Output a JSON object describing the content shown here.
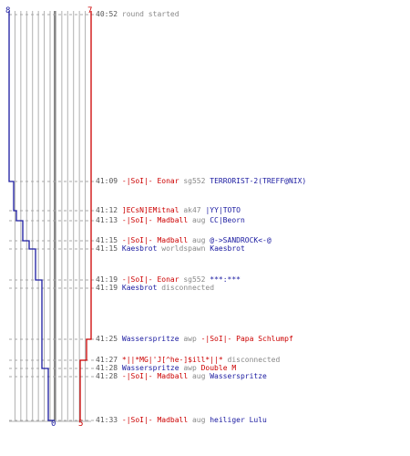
{
  "colors": {
    "blue": "#1a1aa0",
    "red": "#cc0000",
    "grid": "#b0b0b0",
    "dash": "#a8a8a8",
    "mid": "#606060"
  },
  "scores": {
    "blue_start": "8",
    "red_start": "7",
    "blue_end": "0",
    "red_end": "5"
  },
  "events": [
    {
      "time": "40:52",
      "parts": [
        {
          "c": "gray",
          "t": "round started"
        }
      ]
    },
    {
      "time": "41:09",
      "parts": [
        {
          "c": "red",
          "t": "-|SoI|- Eonar"
        },
        {
          "c": "gray",
          "t": "sg552"
        },
        {
          "c": "blue",
          "t": "TERRORIST-2(TREFF@NIX)"
        }
      ]
    },
    {
      "time": "41:12",
      "parts": [
        {
          "c": "red",
          "t": "]ECsN]EMitnal"
        },
        {
          "c": "gray",
          "t": "ak47"
        },
        {
          "c": "blue",
          "t": "|YY|TOTO"
        }
      ]
    },
    {
      "time": "41:13",
      "parts": [
        {
          "c": "red",
          "t": "-|SoI|- Madball"
        },
        {
          "c": "gray",
          "t": "aug"
        },
        {
          "c": "blue",
          "t": "CC|Beorn"
        }
      ]
    },
    {
      "time": "41:15",
      "parts": [
        {
          "c": "red",
          "t": "-|SoI|- Madball"
        },
        {
          "c": "gray",
          "t": "aug"
        },
        {
          "c": "blue",
          "t": "@->SANDROCK<-@"
        }
      ]
    },
    {
      "time": "41:15",
      "parts": [
        {
          "c": "blue",
          "t": "Kaesbrot"
        },
        {
          "c": "gray",
          "t": "worldspawn"
        },
        {
          "c": "blue",
          "t": "Kaesbrot"
        }
      ]
    },
    {
      "time": "41:19",
      "parts": [
        {
          "c": "red",
          "t": "-|SoI|- Eonar"
        },
        {
          "c": "gray",
          "t": "sg552"
        },
        {
          "c": "blue",
          "t": "***:***"
        }
      ]
    },
    {
      "time": "41:19",
      "parts": [
        {
          "c": "blue",
          "t": "Kaesbrot"
        },
        {
          "c": "gray",
          "t": "disconnected"
        }
      ]
    },
    {
      "time": "41:25",
      "parts": [
        {
          "c": "blue",
          "t": "Wasserspritze"
        },
        {
          "c": "gray",
          "t": "awp"
        },
        {
          "c": "red",
          "t": "-|SoI|- Papa Schlumpf"
        }
      ]
    },
    {
      "time": "41:27",
      "parts": [
        {
          "c": "red",
          "t": "*||*MG|'J[^he-]$ill*||*"
        },
        {
          "c": "gray",
          "t": "disconnected"
        }
      ]
    },
    {
      "time": "41:28",
      "parts": [
        {
          "c": "blue",
          "t": "Wasserspritze"
        },
        {
          "c": "gray",
          "t": "awp"
        },
        {
          "c": "red",
          "t": "Double M"
        }
      ]
    },
    {
      "time": "41:28",
      "parts": [
        {
          "c": "red",
          "t": "-|SoI|- Madball"
        },
        {
          "c": "gray",
          "t": "aug"
        },
        {
          "c": "blue",
          "t": "Wasserspritze"
        }
      ]
    },
    {
      "time": "41:33",
      "parts": [
        {
          "c": "red",
          "t": "-|SoI|- Madball"
        },
        {
          "c": "gray",
          "t": "aug"
        },
        {
          "c": "blue",
          "t": "heiliger Lulu"
        }
      ]
    }
  ]
}
